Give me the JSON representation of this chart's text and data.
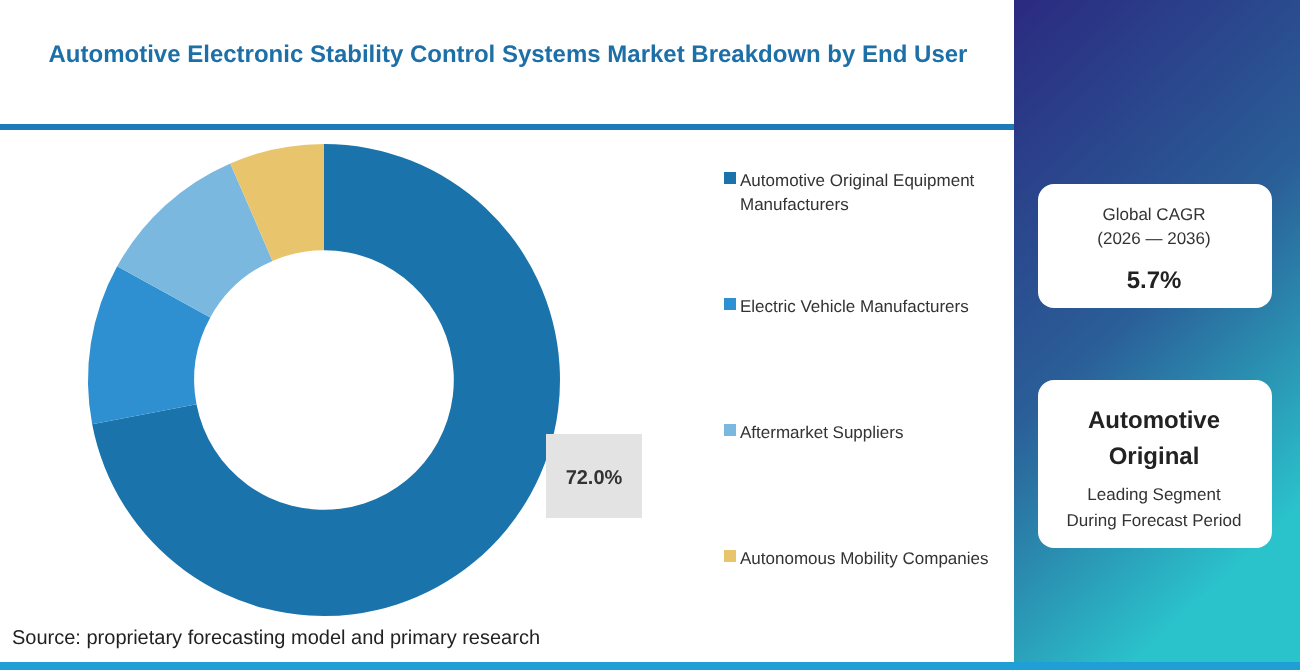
{
  "chart_data": {
    "type": "donut",
    "title": "Automotive Electronic Stability Control Systems Market Breakdown by End User",
    "categories": [
      "Automotive Original Equipment Manufacturers",
      "Electric Vehicle Manufacturers",
      "Aftermarket Suppliers",
      "Autonomous Mobility Companies"
    ],
    "values": [
      72,
      11,
      10.5,
      6.5
    ],
    "colors": [
      "#1a74ab",
      "#2e8fd1",
      "#7bb8e0",
      "#e8c46c"
    ],
    "value_labels": [
      "72.0%",
      null,
      null,
      null
    ],
    "legend": "right",
    "annotations": [
      "Source: proprietary forecasting model and primary research",
      "Global CAGR",
      "(2026 — 2036)",
      "5.7%",
      "Automotive Original",
      "Leading Segment",
      "During Forecast Period"
    ]
  }
}
